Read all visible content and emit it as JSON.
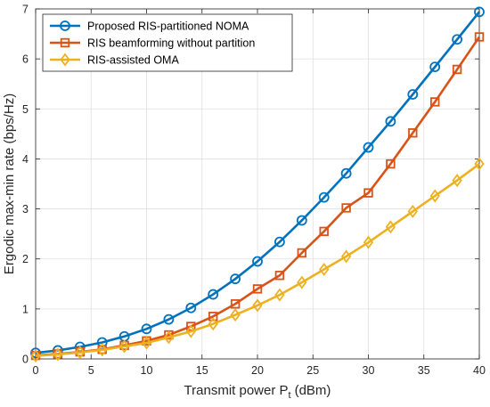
{
  "chart_data": {
    "type": "line",
    "x": [
      0,
      2,
      4,
      6,
      8,
      10,
      12,
      14,
      16,
      18,
      20,
      22,
      24,
      26,
      28,
      30,
      32,
      34,
      36,
      38,
      40
    ],
    "series": [
      {
        "name": "Proposed RIS-partitioned NOMA",
        "color": "#0072BD",
        "marker": "circle",
        "values": [
          0.12,
          0.17,
          0.24,
          0.33,
          0.45,
          0.6,
          0.79,
          1.02,
          1.29,
          1.6,
          1.95,
          2.34,
          2.77,
          3.23,
          3.71,
          4.23,
          4.75,
          5.29,
          5.84,
          6.39,
          6.94
        ]
      },
      {
        "name": "RIS beamforming without partition",
        "color": "#D95319",
        "marker": "square",
        "values": [
          0.07,
          0.1,
          0.14,
          0.19,
          0.27,
          0.36,
          0.48,
          0.65,
          0.85,
          1.1,
          1.4,
          1.67,
          2.12,
          2.55,
          3.02,
          3.32,
          3.9,
          4.52,
          5.14,
          5.79,
          6.44
        ]
      },
      {
        "name": "RIS-assisted OMA",
        "color": "#EDB120",
        "marker": "diamond",
        "values": [
          0.06,
          0.09,
          0.13,
          0.18,
          0.25,
          0.32,
          0.43,
          0.55,
          0.7,
          0.88,
          1.07,
          1.28,
          1.53,
          1.79,
          2.05,
          2.33,
          2.64,
          2.95,
          3.26,
          3.57,
          3.9
        ]
      }
    ],
    "xlabel": "Transmit power P",
    "xlabel_subscript": "t",
    "xlabel_unit": "(dBm)",
    "ylabel": "Ergodic max-min rate (bps/Hz)",
    "xlim": [
      0,
      40
    ],
    "ylim": [
      0,
      7
    ],
    "xticks": [
      "0",
      "5",
      "10",
      "15",
      "20",
      "25",
      "30",
      "35",
      "40"
    ],
    "yticks": [
      "0",
      "1",
      "2",
      "3",
      "4",
      "5",
      "6",
      "7"
    ],
    "grid": true,
    "legend_position": "top-left"
  }
}
